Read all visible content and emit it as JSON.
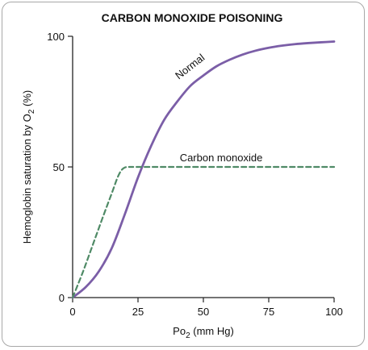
{
  "chart_data": {
    "type": "line",
    "title": "CARBON MONOXIDE POISONING",
    "xlabel": "Po",
    "xlabel_sub": "2",
    "xlabel_unit": " (mm Hg)",
    "ylabel": "Hemoglobin saturation by O",
    "ylabel_sub": "2",
    "ylabel_unit": " (%)",
    "xlim": [
      0,
      100
    ],
    "ylim": [
      0,
      100
    ],
    "x_ticks": [
      0,
      25,
      50,
      75,
      100
    ],
    "y_ticks": [
      0,
      50,
      100
    ],
    "x_tick_labels": [
      "0",
      "25",
      "50",
      "75",
      "100"
    ],
    "y_tick_labels": [
      "0",
      "50",
      "100"
    ],
    "grid": false,
    "series": [
      {
        "name": "Normal",
        "color": "#7b5ea7",
        "style": "solid",
        "x": [
          0,
          5,
          10,
          15,
          20,
          25,
          30,
          35,
          40,
          45,
          50,
          55,
          60,
          65,
          70,
          75,
          80,
          85,
          90,
          95,
          100
        ],
        "y": [
          0,
          4,
          10,
          19,
          32,
          46,
          58,
          68,
          75,
          81,
          85,
          88.5,
          91,
          93,
          94.5,
          95.6,
          96.4,
          97,
          97.4,
          97.7,
          98
        ]
      },
      {
        "name": "Carbon monoxide",
        "color": "#4f8a66",
        "style": "dashed",
        "x": [
          0,
          4,
          8,
          12,
          15,
          17,
          18.5,
          20,
          22,
          25,
          50,
          75,
          100
        ],
        "y": [
          0,
          10,
          21,
          32,
          40,
          45.5,
          48.5,
          49.8,
          50,
          50,
          50,
          50,
          50
        ]
      }
    ]
  }
}
